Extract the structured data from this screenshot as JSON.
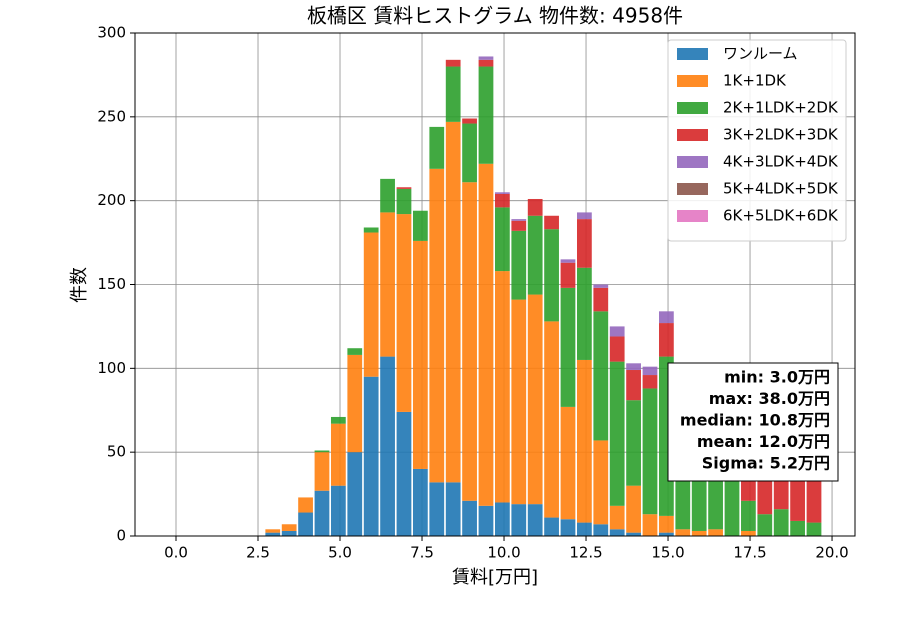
{
  "chart_data": {
    "type": "histogram",
    "title": "板橋区 賃料ヒストグラム 物件数: 4958件",
    "xlabel": "賃料[万円]",
    "ylabel": "件数",
    "bins": [
      2.7,
      3.2,
      3.7,
      4.2,
      4.7,
      5.2,
      5.7,
      6.2,
      6.7,
      7.2,
      7.7,
      8.2,
      8.7,
      9.2,
      9.7,
      10.2,
      10.7,
      11.2,
      11.7,
      12.2,
      12.7,
      13.2,
      13.7,
      14.2,
      14.7,
      15.2,
      15.7,
      16.2,
      16.7,
      17.2,
      17.7,
      18.2,
      18.7,
      19.2,
      19.7
    ],
    "stacked": true,
    "series": [
      {
        "name": "ワンルーム",
        "color": "#1f77b4",
        "values": [
          2,
          3,
          14,
          27,
          30,
          50,
          95,
          107,
          74,
          40,
          32,
          32,
          21,
          18,
          20,
          19,
          19,
          11,
          10,
          8,
          7,
          4,
          2,
          0,
          2,
          0,
          0,
          0,
          0,
          0,
          0,
          0,
          0,
          0
        ]
      },
      {
        "name": "1K+1DK",
        "color": "#ff7f0e",
        "values": [
          2,
          4,
          9,
          23,
          37,
          58,
          86,
          86,
          118,
          136,
          187,
          215,
          190,
          204,
          138,
          122,
          125,
          117,
          67,
          97,
          50,
          14,
          28,
          13,
          10,
          4,
          3,
          4,
          0,
          3,
          0,
          0,
          0,
          0
        ]
      },
      {
        "name": "2K+1LDK+2DK",
        "color": "#2ca02c",
        "values": [
          0,
          0,
          0,
          1,
          4,
          4,
          3,
          20,
          15,
          18,
          25,
          33,
          35,
          58,
          38,
          41,
          47,
          55,
          71,
          55,
          77,
          86,
          51,
          75,
          95,
          70,
          55,
          50,
          35,
          18,
          13,
          16,
          9,
          8
        ]
      },
      {
        "name": "3K+2LDK+3DK",
        "color": "#d62728",
        "values": [
          0,
          0,
          0,
          0,
          0,
          0,
          0,
          0,
          1,
          0,
          0,
          4,
          3,
          4,
          8,
          6,
          10,
          8,
          15,
          29,
          14,
          15,
          18,
          8,
          20,
          8,
          10,
          12,
          15,
          15,
          27,
          30,
          31,
          27
        ]
      },
      {
        "name": "4K+3LDK+4DK",
        "color": "#9467bd",
        "values": [
          0,
          0,
          0,
          0,
          0,
          0,
          0,
          0,
          0,
          0,
          0,
          0,
          0,
          2,
          1,
          1,
          0,
          0,
          2,
          4,
          2,
          6,
          4,
          5,
          7,
          0,
          0,
          0,
          0,
          0,
          0,
          0,
          0,
          0
        ]
      },
      {
        "name": "5K+4LDK+5DK",
        "color": "#8c564b",
        "values": [
          0,
          0,
          0,
          0,
          0,
          0,
          0,
          0,
          0,
          0,
          0,
          0,
          0,
          0,
          0,
          0,
          0,
          0,
          0,
          0,
          0,
          0,
          0,
          0,
          0,
          0,
          0,
          0,
          0,
          0,
          0,
          0,
          0,
          0
        ]
      },
      {
        "name": "6K+5LDK+6DK",
        "color": "#e377c2",
        "values": [
          0,
          0,
          0,
          0,
          0,
          0,
          0,
          0,
          0,
          0,
          0,
          0,
          0,
          0,
          0,
          0,
          0,
          0,
          0,
          0,
          0,
          0,
          0,
          0,
          0,
          0,
          0,
          0,
          0,
          0,
          0,
          0,
          0,
          0
        ]
      }
    ],
    "xlim": [
      -1.25,
      20.7
    ],
    "ylim": [
      0,
      300
    ],
    "xticks": [
      {
        "value": 0,
        "label": "0.0"
      },
      {
        "value": 2.5,
        "label": "2.5"
      },
      {
        "value": 5,
        "label": "5.0"
      },
      {
        "value": 7.5,
        "label": "7.5"
      },
      {
        "value": 10,
        "label": "10.0"
      },
      {
        "value": 12.5,
        "label": "12.5"
      },
      {
        "value": 15,
        "label": "15.0"
      },
      {
        "value": 17.5,
        "label": "17.5"
      },
      {
        "value": 20,
        "label": "20.0"
      }
    ],
    "yticks": [
      0,
      50,
      100,
      150,
      200,
      250,
      300
    ],
    "grid": true,
    "legend": "upper right",
    "annotations": [
      "min: 3.0万円",
      "max: 38.0万円",
      "median: 10.8万円",
      "mean: 12.0万円",
      "Sigma: 5.2万円"
    ]
  }
}
